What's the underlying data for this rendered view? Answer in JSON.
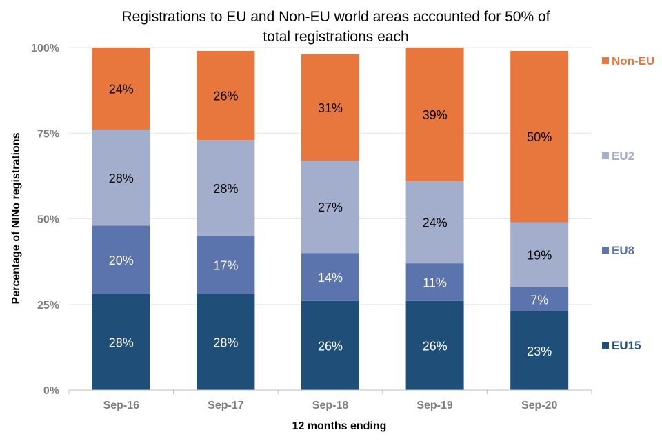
{
  "chart_data": {
    "type": "bar",
    "stacked": true,
    "title_lines": [
      "Registrations to EU and Non-EU world areas accounted for 50% of",
      "total registrations each"
    ],
    "xlabel": "12 months ending",
    "ylabel": "Percentage of NINo registrations",
    "categories": [
      "Sep-16",
      "Sep-17",
      "Sep-18",
      "Sep-19",
      "Sep-20"
    ],
    "ylim": [
      0,
      100
    ],
    "yticks": [
      0,
      25,
      50,
      75,
      100
    ],
    "ytick_labels": [
      "0%",
      "25%",
      "50%",
      "75%",
      "100%"
    ],
    "grid": true,
    "legend_position": "right",
    "series": [
      {
        "name": "EU15",
        "color": "#1f4e79",
        "label_color": "#ffffff",
        "values": [
          28,
          28,
          26,
          26,
          23
        ],
        "labels": [
          "28%",
          "28%",
          "26%",
          "26%",
          "23%"
        ]
      },
      {
        "name": "EU8",
        "color": "#5b74ad",
        "label_color": "#ffffff",
        "values": [
          20,
          17,
          14,
          11,
          7
        ],
        "labels": [
          "20%",
          "17%",
          "14%",
          "11%",
          "7%"
        ]
      },
      {
        "name": "EU2",
        "color": "#a3adcc",
        "label_color": "#000000",
        "values": [
          28,
          28,
          27,
          24,
          19
        ],
        "labels": [
          "28%",
          "28%",
          "27%",
          "24%",
          "19%"
        ]
      },
      {
        "name": "Non-EU",
        "color": "#e8773d",
        "label_color": "#000000",
        "values": [
          24,
          26,
          31,
          39,
          50
        ],
        "labels": [
          "24%",
          "26%",
          "31%",
          "39%",
          "50%"
        ]
      }
    ]
  }
}
